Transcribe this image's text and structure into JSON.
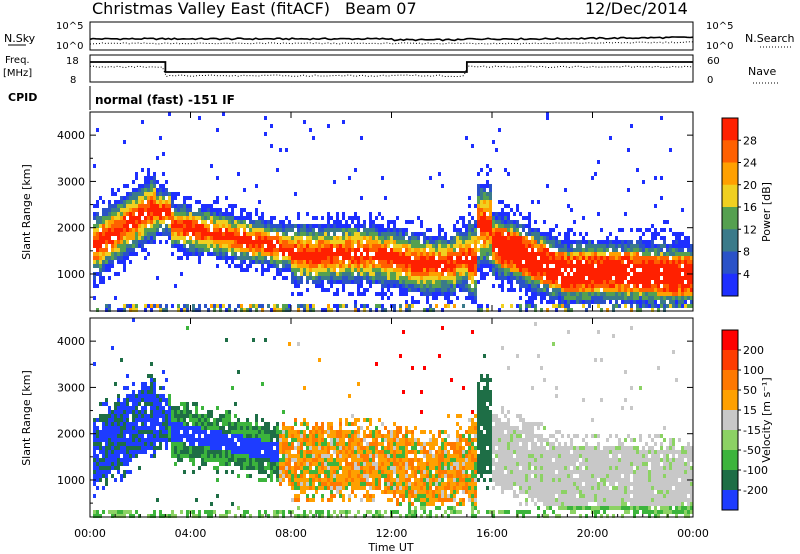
{
  "header": {
    "station": "Christmas Valley East (fitACF)",
    "beam": "Beam 07",
    "date": "12/Dec/2014"
  },
  "top_panels": {
    "noise": {
      "left_label": "N.Sky",
      "right_label": "N.Search",
      "left_ticks": [
        "10^5",
        "10^0"
      ],
      "right_ticks": [
        "10^5",
        "10^0"
      ]
    },
    "freq": {
      "left_label_1": "Freq.",
      "left_label_2": "[MHz]",
      "left_ticks": [
        "18",
        "8"
      ],
      "right_label": "Nave",
      "right_ticks": [
        "60",
        "0"
      ]
    },
    "cpid": {
      "label": "CPID",
      "text": "normal (fast) -151 IF"
    }
  },
  "colors": {
    "power_scale": [
      "#1e2fff",
      "#2a52c8",
      "#3a7a8a",
      "#55a050",
      "#f0d020",
      "#ffa000",
      "#ff6000",
      "#ff2000"
    ],
    "velocity_scale": [
      "#1e3cff",
      "#1e6e46",
      "#3cb43c",
      "#8cd264",
      "#c8c8c8",
      "#ffa000",
      "#ff7800",
      "#ff3c00",
      "#ff0000"
    ]
  },
  "chart_data": [
    {
      "type": "heatmap",
      "name": "power",
      "ylabel": "Slant Range [km]",
      "y_ticks": [
        "4000",
        "3000",
        "2000",
        "1000"
      ],
      "ylim": [
        200,
        4500
      ],
      "colorbar_label": "Power [dB]",
      "colorbar_ticks": [
        "28",
        "24",
        "20",
        "16",
        "12",
        "8",
        "4"
      ],
      "color_range": [
        0,
        30
      ]
    },
    {
      "type": "heatmap",
      "name": "velocity",
      "ylabel": "Slant Range [km]",
      "y_ticks": [
        "4000",
        "3000",
        "2000",
        "1000"
      ],
      "ylim": [
        200,
        4500
      ],
      "colorbar_label": "Velocity [m s⁻¹]",
      "colorbar_ticks": [
        "200",
        "100",
        "50",
        "15",
        "-15",
        "-50",
        "-100",
        "-200"
      ],
      "x_ticks": [
        "00:00",
        "04:00",
        "08:00",
        "12:00",
        "16:00",
        "20:00",
        "00:00"
      ],
      "xlabel": "Time UT",
      "xlim": [
        0,
        24
      ]
    }
  ]
}
